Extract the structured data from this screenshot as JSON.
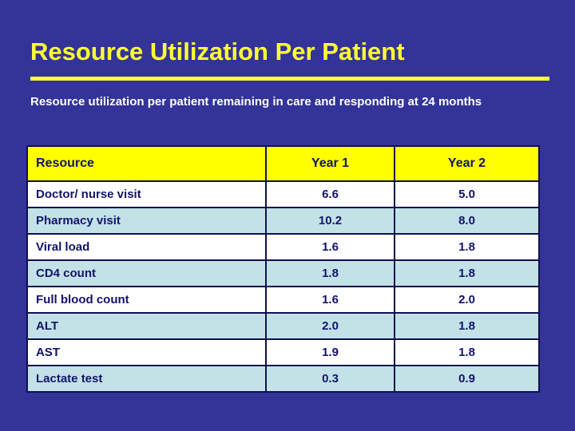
{
  "slide": {
    "title": "Resource Utilization Per Patient",
    "subtitle": "Resource utilization per patient remaining in care and responding at 24 months"
  },
  "colors": {
    "background": "#333399",
    "title_yellow": "#FFFF33",
    "table_header_bg": "#FFFF00",
    "row_white": "#FFFFFF",
    "row_light_blue": "#C2E2E8",
    "table_text_navy": "#13136B",
    "table_border_navy": "#10104F",
    "subtitle_white": "#FFFFFF"
  },
  "chart_data": {
    "type": "table",
    "columns": [
      "Resource",
      "Year 1",
      "Year 2"
    ],
    "rows": [
      [
        "Doctor/ nurse visit",
        "6.6",
        "5.0"
      ],
      [
        "Pharmacy visit",
        "10.2",
        "8.0"
      ],
      [
        "Viral load",
        "1.6",
        "1.8"
      ],
      [
        "CD4 count",
        "1.8",
        "1.8"
      ],
      [
        "Full blood count",
        "1.6",
        "2.0"
      ],
      [
        "ALT",
        "2.0",
        "1.8"
      ],
      [
        "AST",
        "1.9",
        "1.8"
      ],
      [
        "Lactate test",
        "0.3",
        "0.9"
      ]
    ]
  }
}
